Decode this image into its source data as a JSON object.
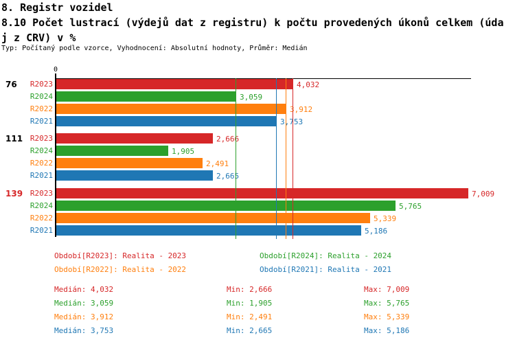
{
  "header": {
    "title_line1": "8. Registr vozidel",
    "title_line2": "8.10 Počet lustrací (výdejů dat z registru) k počtu provedených úkonů celkem (úda",
    "title_line3": "j z CRV) v %",
    "subtitle": "Typ: Počítaný podle vzorce, Vyhodnocení: Absolutní hodnoty, Průměr: Medián"
  },
  "colors": {
    "R2023": "#d62728",
    "R2024": "#2ca02c",
    "R2022": "#ff7f0e",
    "R2021": "#1f77b4",
    "axis": "#000000"
  },
  "chart_data": {
    "type": "bar",
    "orientation": "horizontal-grouped",
    "x_axis": {
      "zero_label": "0",
      "min": 0,
      "max_bar_value": 7009
    },
    "grid": "off",
    "series_order": [
      "R2023",
      "R2024",
      "R2022",
      "R2021"
    ],
    "groups": [
      {
        "label": "76",
        "label_color": "#000000",
        "values": {
          "R2023": 4032,
          "R2024": 3059,
          "R2022": 3912,
          "R2021": 3753
        }
      },
      {
        "label": "111",
        "label_color": "#000000",
        "values": {
          "R2023": 2666,
          "R2024": 1905,
          "R2022": 2491,
          "R2021": 2665
        }
      },
      {
        "label": "139",
        "label_color": "#d62728",
        "values": {
          "R2023": 7009,
          "R2024": 5765,
          "R2022": 5339,
          "R2021": 5186
        }
      }
    ],
    "medians": {
      "R2023": 4032,
      "R2024": 3059,
      "R2022": 3912,
      "R2021": 3753
    }
  },
  "legend": {
    "items": [
      {
        "series": "R2023",
        "label": "Období[R2023]: Realita - 2023"
      },
      {
        "series": "R2024",
        "label": "Období[R2024]: Realita - 2024"
      },
      {
        "series": "R2022",
        "label": "Období[R2022]: Realita - 2022"
      },
      {
        "series": "R2021",
        "label": "Období[R2021]: Realita - 2021"
      }
    ]
  },
  "stats": {
    "labels": {
      "median": "Medián",
      "min": "Min",
      "max": "Max"
    },
    "rows": [
      {
        "series": "R2023",
        "median": 4032,
        "min": 2666,
        "max": 7009
      },
      {
        "series": "R2024",
        "median": 3059,
        "min": 1905,
        "max": 5765
      },
      {
        "series": "R2022",
        "median": 3912,
        "min": 2491,
        "max": 5339
      },
      {
        "series": "R2021",
        "median": 3753,
        "min": 2665,
        "max": 5186
      }
    ]
  }
}
